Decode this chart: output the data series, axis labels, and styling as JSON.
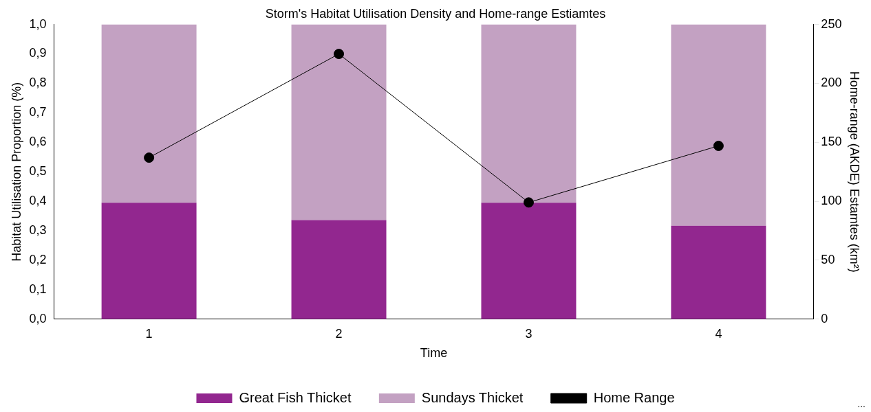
{
  "chart_data": {
    "type": "bar",
    "title": "Storm's Habitat Utilisation Density and Home-range Estiamtes",
    "xlabel": "Time",
    "ylabel": "Habitat Utilisation Proportion (%)",
    "y2label": "Home-range (AKDE) Estamtes (km²)",
    "categories": [
      "1",
      "2",
      "3",
      "4"
    ],
    "stacked": true,
    "series": [
      {
        "name": "Great Fish Thicket",
        "color": "#92278f",
        "values": [
          0.395,
          0.336,
          0.395,
          0.317
        ]
      },
      {
        "name": "Sundays Thicket",
        "color": "#c3a1c2",
        "values": [
          0.605,
          0.664,
          0.605,
          0.683
        ]
      },
      {
        "name": "Home Range",
        "type": "line",
        "axis": "y2",
        "color": "#000000",
        "values": [
          137,
          225,
          99,
          147
        ]
      }
    ],
    "ylim": [
      0,
      1
    ],
    "yticks": [
      {
        "value": 0,
        "label": "0,0"
      },
      {
        "value": 0.1,
        "label": "0,1"
      },
      {
        "value": 0.2,
        "label": "0,2"
      },
      {
        "value": 0.3,
        "label": "0,3"
      },
      {
        "value": 0.4,
        "label": "0,4"
      },
      {
        "value": 0.5,
        "label": "0,5"
      },
      {
        "value": 0.6,
        "label": "0,6"
      },
      {
        "value": 0.7,
        "label": "0,7"
      },
      {
        "value": 0.8,
        "label": "0,8"
      },
      {
        "value": 0.9,
        "label": "0,9"
      },
      {
        "value": 1,
        "label": "1,0"
      }
    ],
    "y2lim": [
      0,
      250
    ],
    "y2ticks": [
      0,
      50,
      100,
      150,
      200,
      250
    ],
    "marker": "circle",
    "legend": "bottom",
    "grid": false,
    "annotations": [
      "..."
    ]
  }
}
